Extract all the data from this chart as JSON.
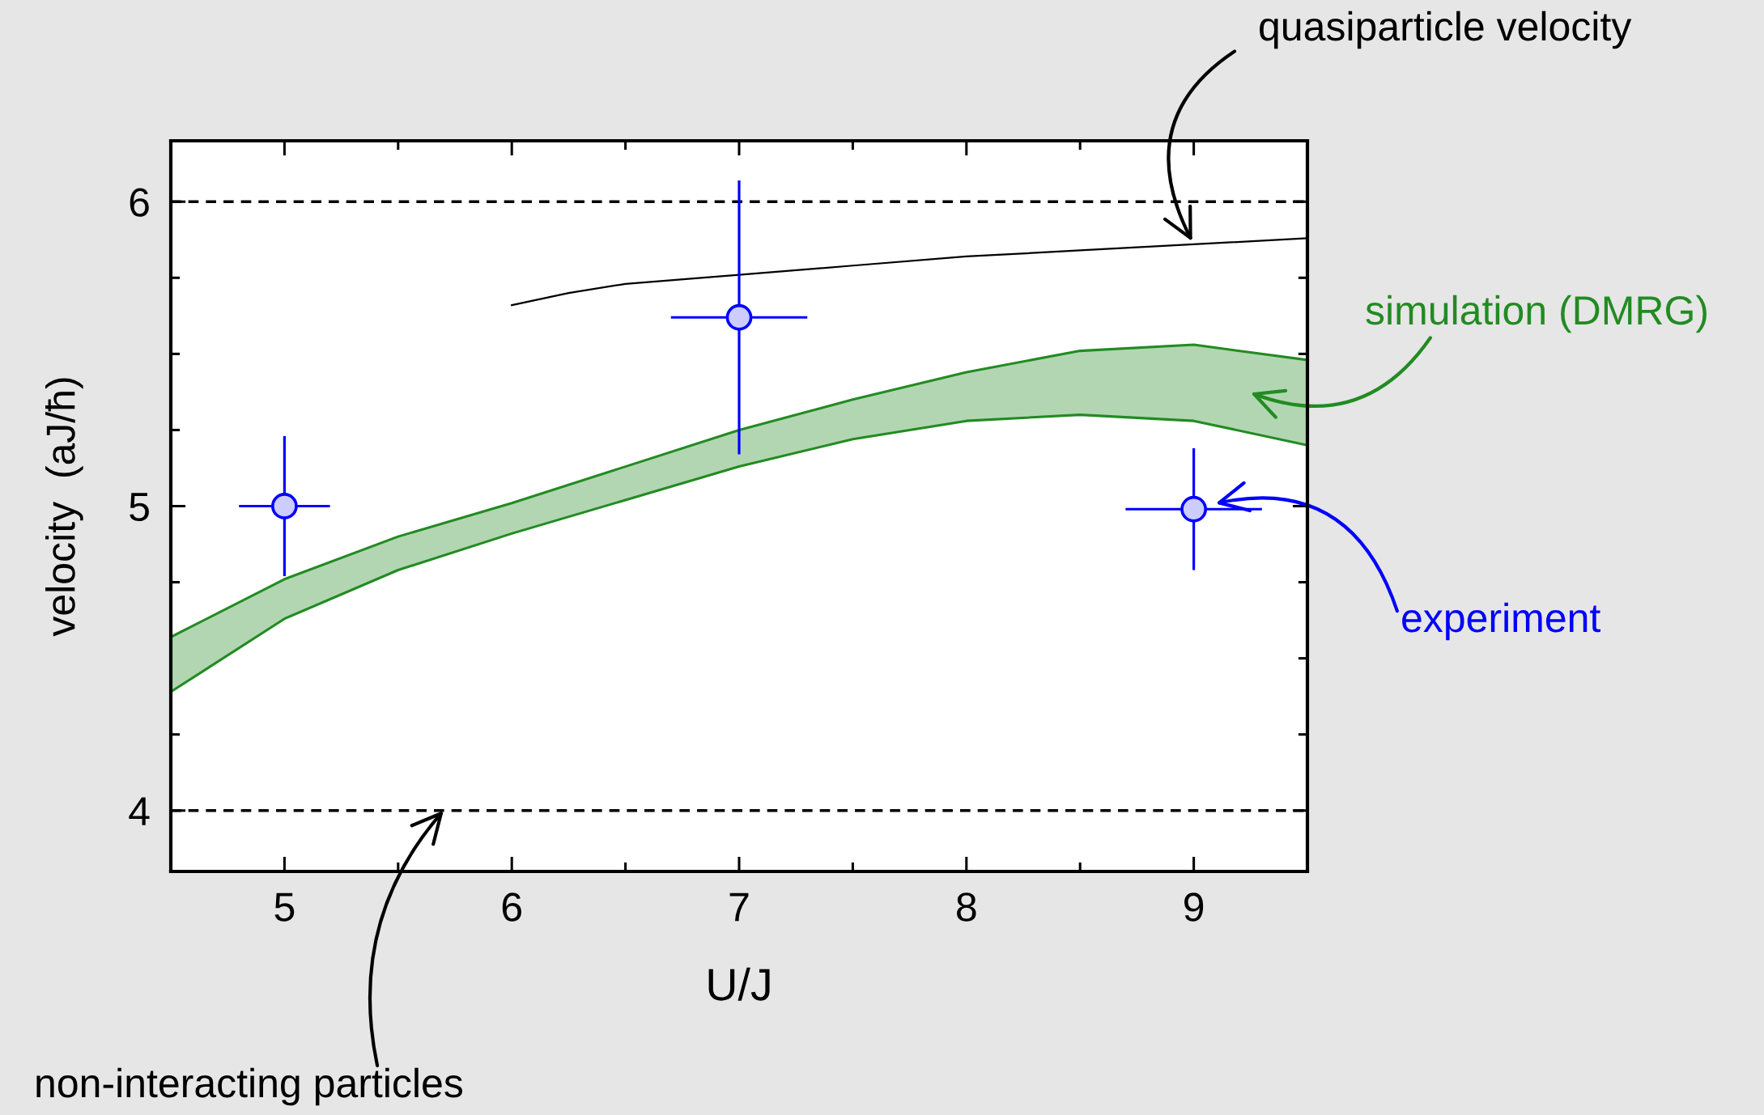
{
  "chart_data": {
    "type": "line",
    "xlabel": "U/J",
    "ylabel": "velocity  (aJ/ħ)",
    "xlim": [
      4.5,
      9.5
    ],
    "ylim": [
      3.8,
      6.2
    ],
    "xticks": [
      5,
      {
        "value": 5.5,
        "label": null
      },
      6,
      {
        "value": 6.5,
        "label": null
      },
      7,
      {
        "value": 7.5,
        "label": null
      },
      8,
      {
        "value": 8.5,
        "label": null
      },
      9
    ],
    "yticks": [
      4,
      {
        "value": 4.25,
        "label": null
      },
      {
        "value": 4.5,
        "label": null
      },
      {
        "value": 4.75,
        "label": null
      },
      5,
      {
        "value": 5.25,
        "label": null
      },
      {
        "value": 5.5,
        "label": null
      },
      {
        "value": 5.75,
        "label": null
      },
      6
    ],
    "ref_lines": [
      {
        "axis": "y",
        "value": 6,
        "color": "#000000",
        "line_style": "dashed"
      },
      {
        "axis": "y",
        "value": 4,
        "color": "#000000",
        "line_style": "dashed"
      }
    ],
    "annotations": [
      {
        "text": "non-interacting particles",
        "x": 5.7,
        "y": 4
      }
    ],
    "series": [
      {
        "name": "simulation (DMRG)",
        "type": "area",
        "color": "#228b22",
        "x": [
          4.5,
          5,
          5.5,
          6,
          6.5,
          7,
          7.5,
          8,
          8.5,
          9,
          9.5
        ],
        "values": [
          null,
          null,
          null,
          null,
          null,
          null,
          null,
          null,
          null,
          null,
          null
        ],
        "lower": [
          4.39,
          4.63,
          4.79,
          4.91,
          5.02,
          5.13,
          5.22,
          5.28,
          5.3,
          5.28,
          5.2
        ],
        "upper": [
          4.57,
          4.76,
          4.9,
          5.01,
          5.13,
          5.25,
          5.35,
          5.44,
          5.51,
          5.53,
          5.48
        ]
      },
      {
        "name": "quasiparticle velocity",
        "color": "#000000",
        "x": [
          6.0,
          6.25,
          6.5,
          7.0,
          7.5,
          8.0,
          8.5,
          9.0,
          9.5
        ],
        "values": [
          5.66,
          5.7,
          5.73,
          5.76,
          5.79,
          5.82,
          5.84,
          5.86,
          5.88
        ]
      },
      {
        "name": "experiment",
        "type": "scatter",
        "color": "#0000ff",
        "marker": "circle",
        "x": [
          5,
          7,
          9
        ],
        "values": [
          5.0,
          5.62,
          4.99
        ],
        "errors": [
          0.23,
          0.45,
          0.2
        ],
        "xerrors": [
          0.2,
          0.3,
          0.3
        ]
      }
    ]
  }
}
